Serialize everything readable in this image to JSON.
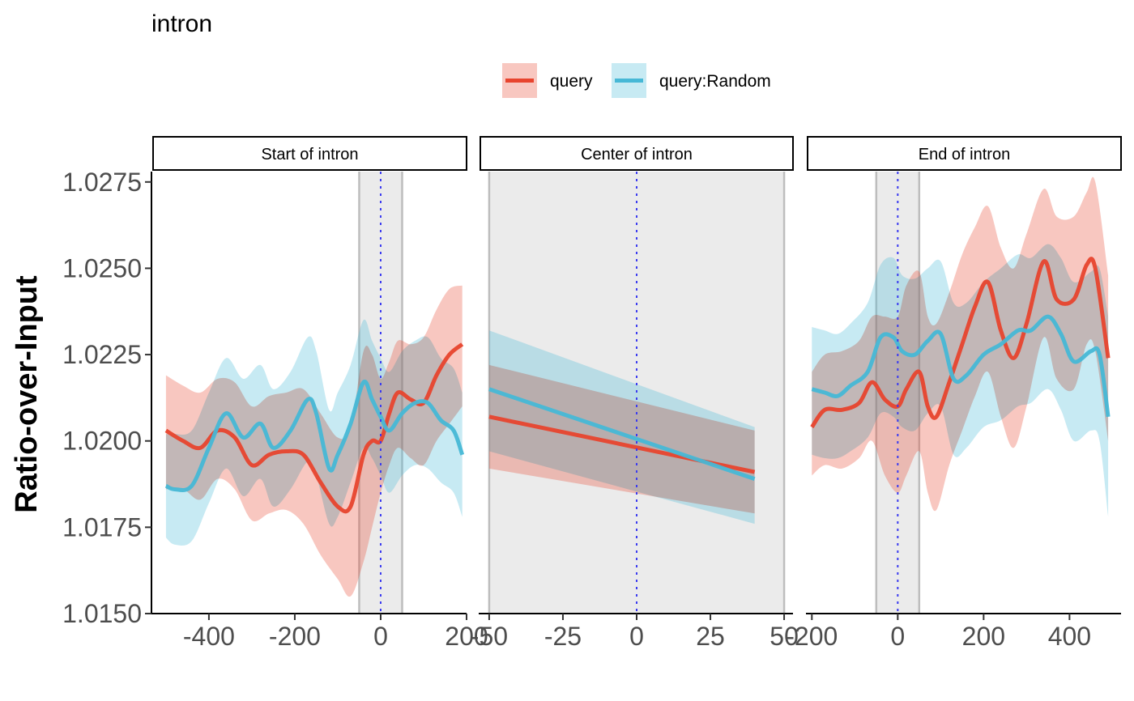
{
  "chart_data": {
    "type": "line",
    "title": "intron",
    "ylabel": "Ratio-over-Input",
    "xlabel": "",
    "ylim": [
      1.015,
      1.0278
    ],
    "yticks": [
      1.015,
      1.0175,
      1.02,
      1.0225,
      1.025,
      1.0275
    ],
    "ytick_labels": [
      "1.0150",
      "1.0175",
      "1.0200",
      "1.0225",
      "1.0250",
      "1.0275"
    ],
    "grid": false,
    "legend_position": "top",
    "colors": {
      "query": "#e8442e",
      "query_random": "#47b8d6",
      "highlight": "#ebebeb",
      "center_line": "#3b3bf0"
    },
    "legend": [
      {
        "key": "query",
        "label": "query",
        "color": "#e8442e"
      },
      {
        "key": "query_random",
        "label": "query:Random",
        "color": "#47b8d6"
      }
    ],
    "panels": [
      {
        "strip": "Start of intron",
        "xlim": [
          -530,
          200
        ],
        "xticks": [
          -400,
          -200,
          0,
          200
        ],
        "xtick_labels": [
          "-400",
          "-200",
          "0",
          "200"
        ],
        "highlight": [
          -50,
          50
        ],
        "vline": 0,
        "series": [
          {
            "key": "query",
            "name": "query",
            "x": [
              -500,
              -460,
              -420,
              -380,
              -340,
              -300,
              -260,
              -220,
              -180,
              -140,
              -100,
              -70,
              -40,
              -20,
              0,
              20,
              40,
              70,
              100,
              130,
              160,
              190
            ],
            "y": [
              1.0203,
              1.02,
              1.0198,
              1.0203,
              1.0201,
              1.0193,
              1.0196,
              1.0197,
              1.0196,
              1.0188,
              1.0181,
              1.0181,
              1.0196,
              1.02,
              1.02,
              1.0208,
              1.0214,
              1.0212,
              1.0211,
              1.0219,
              1.0225,
              1.0228
            ],
            "lower": [
              1.0186,
              1.0186,
              1.0183,
              1.0189,
              1.0186,
              1.0177,
              1.0179,
              1.018,
              1.0176,
              1.0167,
              1.016,
              1.0155,
              1.0165,
              1.0175,
              1.0185,
              1.0193,
              1.0198,
              1.0195,
              1.0193,
              1.02,
              1.0205,
              1.021
            ],
            "upper": [
              1.0219,
              1.0216,
              1.0214,
              1.0218,
              1.0217,
              1.021,
              1.0213,
              1.0214,
              1.0215,
              1.0208,
              1.0201,
              1.0204,
              1.0226,
              1.0225,
              1.0218,
              1.0223,
              1.0229,
              1.0228,
              1.023,
              1.0238,
              1.0244,
              1.0245
            ]
          },
          {
            "key": "query_random",
            "name": "query:Random",
            "x": [
              -500,
              -480,
              -440,
              -400,
              -360,
              -320,
              -280,
              -250,
              -210,
              -170,
              -150,
              -120,
              -100,
              -70,
              -40,
              -20,
              0,
              20,
              50,
              80,
              110,
              140,
              170,
              190
            ],
            "y": [
              1.0187,
              1.0186,
              1.0187,
              1.0198,
              1.0208,
              1.0201,
              1.0205,
              1.0198,
              1.0203,
              1.0212,
              1.0208,
              1.0192,
              1.0196,
              1.0205,
              1.0217,
              1.0212,
              1.0207,
              1.0203,
              1.0208,
              1.0211,
              1.0211,
              1.0206,
              1.0203,
              1.0196
            ],
            "lower": [
              1.0172,
              1.017,
              1.0171,
              1.0182,
              1.0192,
              1.0184,
              1.0189,
              1.0181,
              1.0186,
              1.0194,
              1.019,
              1.0176,
              1.0178,
              1.0188,
              1.0198,
              1.0195,
              1.019,
              1.0185,
              1.019,
              1.0193,
              1.0192,
              1.0188,
              1.0185,
              1.0178
            ],
            "upper": [
              1.0202,
              1.0202,
              1.0203,
              1.0214,
              1.0224,
              1.0218,
              1.0222,
              1.0215,
              1.022,
              1.023,
              1.0226,
              1.0209,
              1.0214,
              1.0222,
              1.0235,
              1.0229,
              1.0224,
              1.022,
              1.0226,
              1.0229,
              1.023,
              1.0224,
              1.0221,
              1.0214
            ]
          }
        ]
      },
      {
        "strip": "Center of intron",
        "xlim": [
          -53,
          53
        ],
        "xticks": [
          -50,
          -25,
          0,
          25,
          50
        ],
        "xtick_labels": [
          "-50",
          "-25",
          "0",
          "25",
          "50"
        ],
        "highlight": [
          -50,
          50
        ],
        "vline": 0,
        "series": [
          {
            "key": "query",
            "name": "query",
            "x": [
              -50,
              40
            ],
            "y": [
              1.0207,
              1.0191
            ],
            "lower": [
              1.0192,
              1.0179
            ],
            "upper": [
              1.0222,
              1.0203
            ]
          },
          {
            "key": "query_random",
            "name": "query:Random",
            "x": [
              -50,
              40
            ],
            "y": [
              1.0215,
              1.0189
            ],
            "lower": [
              1.0197,
              1.0176
            ],
            "upper": [
              1.0232,
              1.0204
            ]
          }
        ]
      },
      {
        "strip": "End of intron",
        "xlim": [
          -210,
          520
        ],
        "xticks": [
          -200,
          0,
          200,
          400
        ],
        "xtick_labels": [
          "-200",
          "0",
          "200",
          "400"
        ],
        "highlight": [
          -50,
          50
        ],
        "vline": 0,
        "series": [
          {
            "key": "query",
            "name": "query",
            "x": [
              -200,
              -170,
              -130,
              -90,
              -60,
              -30,
              0,
              20,
              50,
              70,
              90,
              120,
              150,
              180,
              210,
              240,
              270,
              300,
              340,
              370,
              410,
              440,
              460,
              490
            ],
            "y": [
              1.0204,
              1.0209,
              1.0209,
              1.0211,
              1.0217,
              1.0212,
              1.021,
              1.0215,
              1.022,
              1.021,
              1.0207,
              1.0217,
              1.0228,
              1.0239,
              1.0246,
              1.0232,
              1.0224,
              1.0234,
              1.0252,
              1.0241,
              1.0241,
              1.0251,
              1.025,
              1.0224
            ],
            "lower": [
              1.019,
              1.0193,
              1.0192,
              1.0195,
              1.02,
              1.019,
              1.0185,
              1.019,
              1.0197,
              1.0185,
              1.018,
              1.0193,
              1.0203,
              1.0213,
              1.022,
              1.0207,
              1.0198,
              1.021,
              1.023,
              1.0218,
              1.0215,
              1.0228,
              1.0226,
              1.02
            ],
            "upper": [
              1.022,
              1.0225,
              1.0226,
              1.0229,
              1.0236,
              1.0236,
              1.0236,
              1.0245,
              1.0249,
              1.0236,
              1.0234,
              1.0243,
              1.0254,
              1.0262,
              1.0268,
              1.0256,
              1.025,
              1.026,
              1.0273,
              1.0265,
              1.0265,
              1.0272,
              1.0275,
              1.0248
            ]
          },
          {
            "key": "query_random",
            "name": "query:Random",
            "x": [
              -200,
              -170,
              -140,
              -110,
              -70,
              -40,
              -10,
              10,
              40,
              70,
              100,
              130,
              160,
              200,
              240,
              280,
              310,
              350,
              380,
              410,
              450,
              470,
              490
            ],
            "y": [
              1.0215,
              1.0214,
              1.0213,
              1.0216,
              1.022,
              1.023,
              1.023,
              1.0226,
              1.0225,
              1.0229,
              1.0231,
              1.0218,
              1.0219,
              1.0225,
              1.0228,
              1.0232,
              1.0232,
              1.0236,
              1.0231,
              1.0223,
              1.0226,
              1.0225,
              1.0207
            ],
            "lower": [
              1.0196,
              1.0195,
              1.0195,
              1.0197,
              1.0201,
              1.0208,
              1.0207,
              1.0204,
              1.0203,
              1.0208,
              1.021,
              1.0196,
              1.0198,
              1.0204,
              1.0206,
              1.021,
              1.0211,
              1.0215,
              1.0209,
              1.02,
              1.0203,
              1.02,
              1.0178
            ],
            "upper": [
              1.0233,
              1.0232,
              1.0231,
              1.0234,
              1.024,
              1.0251,
              1.0253,
              1.0248,
              1.0247,
              1.025,
              1.0252,
              1.024,
              1.024,
              1.0246,
              1.025,
              1.0254,
              1.0253,
              1.0257,
              1.0253,
              1.0246,
              1.0249,
              1.025,
              1.0236
            ]
          }
        ]
      }
    ]
  }
}
